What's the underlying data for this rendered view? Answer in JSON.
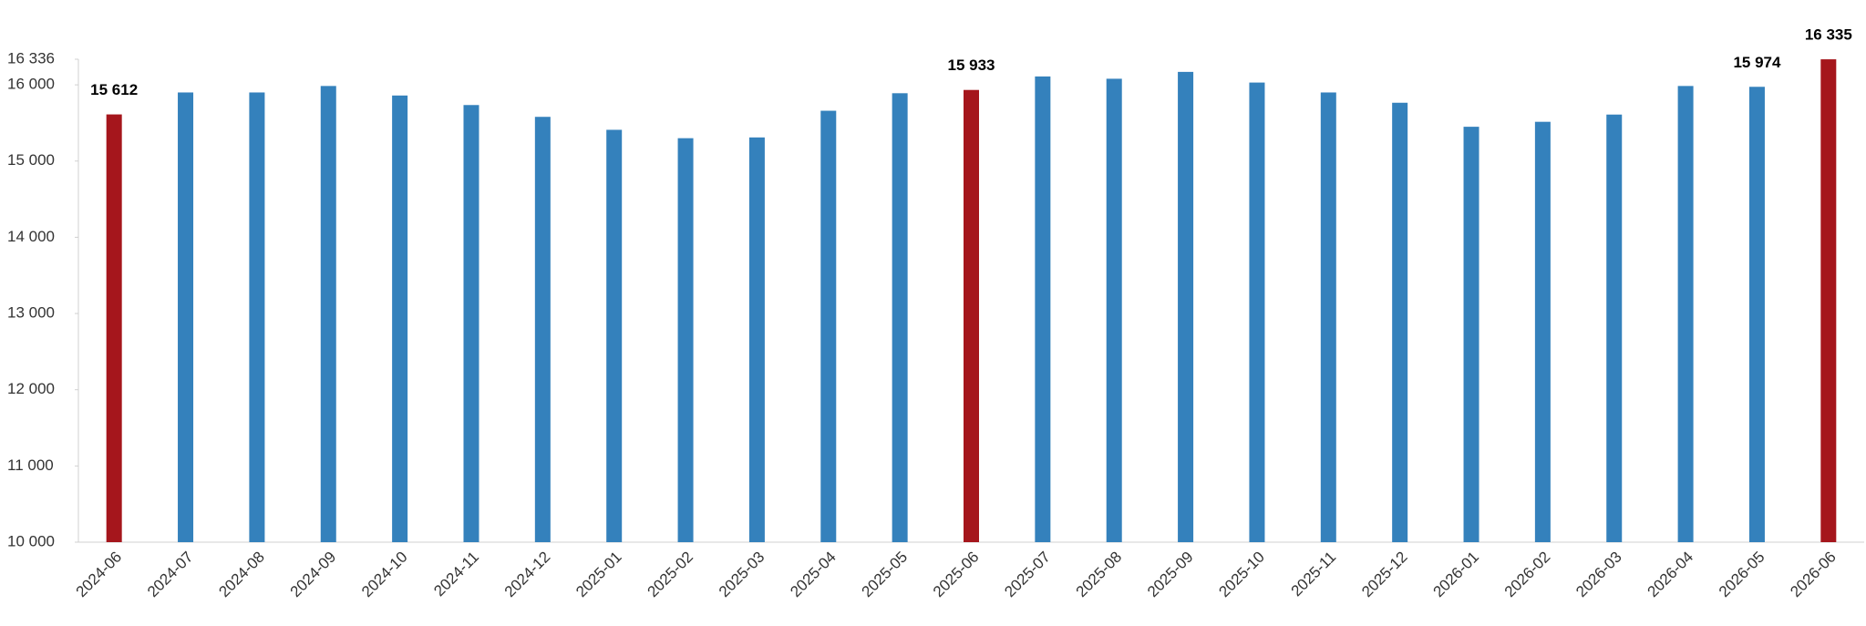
{
  "chart_data": {
    "type": "bar",
    "categories": [
      "2024-06",
      "2024-07",
      "2024-08",
      "2024-09",
      "2024-10",
      "2024-11",
      "2024-12",
      "2025-01",
      "2025-02",
      "2025-03",
      "2025-04",
      "2025-05",
      "2025-06",
      "2025-07",
      "2025-08",
      "2025-09",
      "2025-10",
      "2025-11",
      "2025-12",
      "2026-01",
      "2026-02",
      "2026-03",
      "2026-04",
      "2026-05",
      "2026-06"
    ],
    "values": [
      15612,
      15900,
      15900,
      15985,
      15860,
      15735,
      15580,
      15410,
      15300,
      15310,
      15660,
      15890,
      15933,
      16110,
      16080,
      16170,
      16030,
      15900,
      15765,
      15450,
      15515,
      15610,
      15985,
      15974,
      16335
    ],
    "value_labels": [
      "15 612",
      null,
      null,
      null,
      null,
      null,
      null,
      null,
      null,
      null,
      null,
      null,
      "15 933",
      null,
      null,
      null,
      null,
      null,
      null,
      null,
      null,
      null,
      null,
      "15 974",
      "16 335"
    ],
    "colors": [
      "#a5161c",
      "#3481bc",
      "#3481bc",
      "#3481bc",
      "#3481bc",
      "#3481bc",
      "#3481bc",
      "#3481bc",
      "#3481bc",
      "#3481bc",
      "#3481bc",
      "#3481bc",
      "#a5161c",
      "#3481bc",
      "#3481bc",
      "#3481bc",
      "#3481bc",
      "#3481bc",
      "#3481bc",
      "#3481bc",
      "#3481bc",
      "#3481bc",
      "#3481bc",
      "#3481bc",
      "#a5161c"
    ],
    "ylim": [
      10000,
      16336
    ],
    "yticks": [
      {
        "value": 10000,
        "label": "10 000"
      },
      {
        "value": 11000,
        "label": "11 000"
      },
      {
        "value": 12000,
        "label": "12 000"
      },
      {
        "value": 13000,
        "label": "13 000"
      },
      {
        "value": 14000,
        "label": "14 000"
      },
      {
        "value": 15000,
        "label": "15 000"
      },
      {
        "value": 16000,
        "label": "16 000"
      },
      {
        "value": 16336,
        "label": "16 336"
      }
    ],
    "grid": false
  }
}
